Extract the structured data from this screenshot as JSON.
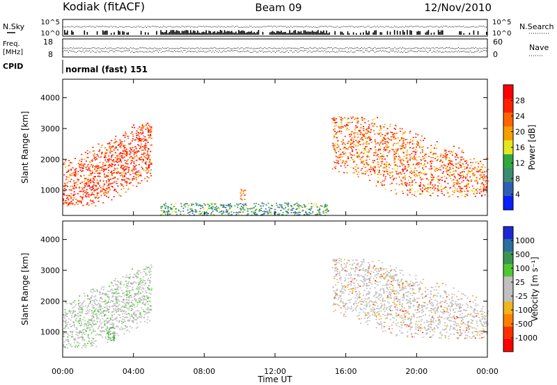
{
  "header": {
    "station": "Kodiak (fitACF)",
    "beam": "Beam 09",
    "date": "12/Nov/2010"
  },
  "status_panel": {
    "nsky_label": "N.Sky",
    "nsearch_label": "N.Search",
    "freq_label_1": "Freq.",
    "freq_label_2": "[MHz]",
    "nave_label": "Nave",
    "cpid_label": "CPID",
    "cpid_value": "normal (fast) 151",
    "nsky_ticks": [
      "10^5",
      "10^0"
    ],
    "nsearch_ticks": [
      "10^5",
      "10^0"
    ],
    "freq_ticks": [
      "18",
      "8"
    ],
    "nave_ticks": [
      "60",
      "0"
    ]
  },
  "chart_data": [
    {
      "type": "heatmap",
      "title": "",
      "xlabel": "Time UT",
      "ylabel": "Slant Range [km]",
      "xlim": [
        0,
        24
      ],
      "ylim": [
        180,
        4600
      ],
      "x_tick_labels": [
        "00:00",
        "04:00",
        "08:00",
        "12:00",
        "16:00",
        "20:00",
        "00:00"
      ],
      "y_ticks": [
        1000,
        2000,
        3000,
        4000
      ],
      "colorbar": {
        "label": "Power [dB]",
        "range": [
          0,
          32
        ],
        "ticks": [
          "4",
          "8",
          "12",
          "16",
          "20",
          "24",
          "28"
        ]
      },
      "regions": [
        {
          "t_start": 0.0,
          "t_end": 5.0,
          "range_low": 500,
          "range_high": 3200,
          "feature": "strong echo band rising with time",
          "value": "20-32 dB"
        },
        {
          "t_start": 10.0,
          "t_end": 10.3,
          "range_low": 700,
          "range_high": 1100,
          "feature": "isolated patch",
          "value": "24 dB"
        },
        {
          "t_start": 5.5,
          "t_end": 15.0,
          "range_low": 200,
          "range_high": 600,
          "feature": "weak near-range scatter",
          "value": "4-16 dB"
        },
        {
          "t_start": 15.2,
          "t_end": 24.0,
          "range_low": 800,
          "range_high": 3400,
          "feature": "strong echo band descending with time",
          "value": "16-32 dB"
        }
      ]
    },
    {
      "type": "heatmap",
      "title": "",
      "xlabel": "Time UT",
      "ylabel": "Slant Range [km]",
      "xlim": [
        0,
        24
      ],
      "ylim": [
        180,
        4600
      ],
      "x_tick_labels": [
        "00:00",
        "04:00",
        "08:00",
        "12:00",
        "16:00",
        "20:00",
        "00:00"
      ],
      "y_ticks": [
        1000,
        2000,
        3000,
        4000
      ],
      "colorbar": {
        "label": "Velocity [m s⁻¹]",
        "ticks": [
          "1000",
          "500",
          "100",
          "25",
          "-25",
          "-100",
          "-500",
          "-1000"
        ]
      },
      "regions": [
        {
          "t_start": 0.0,
          "t_end": 5.0,
          "range_low": 500,
          "range_high": 3200,
          "feature": "mostly ground scatter",
          "value": "-25 to 25 m/s"
        },
        {
          "t_start": 2.5,
          "t_end": 2.9,
          "range_low": 700,
          "range_high": 1200,
          "feature": "positive velocity patch",
          "value": "100 m/s"
        },
        {
          "t_start": 15.2,
          "t_end": 24.0,
          "range_low": 800,
          "range_high": 3400,
          "feature": "mostly ground scatter with some negative velocities",
          "value": "-100 to 25 m/s"
        }
      ]
    }
  ],
  "colors": {
    "power_scale": [
      "#0a1eff",
      "#2f5fb4",
      "#3c8c6e",
      "#2ea840",
      "#e6e61e",
      "#f5a000",
      "#ff6400",
      "#ff2000",
      "#ff0000"
    ],
    "velocity_scale": [
      "#1e28d2",
      "#2a6fa0",
      "#3c9650",
      "#50c832",
      "#c0c0c0",
      "#c0c0c0",
      "#f0b41e",
      "#ff8000",
      "#ff3000",
      "#ff0000"
    ],
    "ground_scatter": "#bdbdbd"
  }
}
